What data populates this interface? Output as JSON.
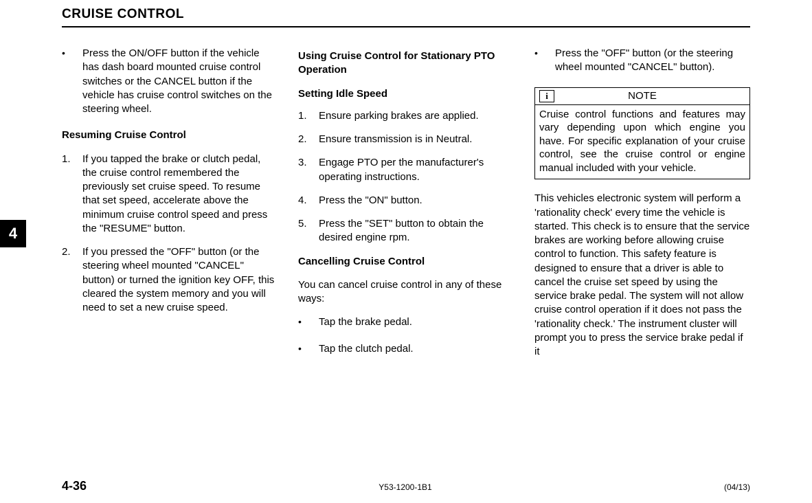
{
  "header": {
    "title": "CRUISE CONTROL"
  },
  "chapter_tab": "4",
  "column1": {
    "bullet1": "Press the ON/OFF button if the vehicle has dash board mounted cruise control switches or the CANCEL button if the vehicle has cruise control switches on the steering wheel.",
    "heading1": "Resuming Cruise Control",
    "item1_num": "1.",
    "item1_text": "If you tapped the brake or clutch pedal, the cruise control remembered the previously set cruise speed.  To resume that set speed, accelerate above the minimum cruise control speed and press the \"RESUME\" button.",
    "item2_num": "2.",
    "item2_text": "If you pressed the \"OFF\" button (or the steering wheel mounted \"CANCEL\" button) or turned the ignition key OFF, this cleared the system memory and you will need to set a new cruise speed."
  },
  "column2": {
    "heading1": "Using Cruise Control for Stationary PTO Operation",
    "subheading1": "Setting Idle Speed",
    "item1_num": "1.",
    "item1_text": "Ensure parking brakes are applied.",
    "item2_num": "2.",
    "item2_text": "Ensure transmission is in Neutral.",
    "item3_num": "3.",
    "item3_text": "Engage PTO per the manufacturer's operating instructions.",
    "item4_num": "4.",
    "item4_text": "Press the \"ON\" button.",
    "item5_num": "5.",
    "item5_text": "Press the \"SET\" button to obtain the desired engine rpm.",
    "heading2": "Cancelling Cruise Control",
    "intro2": "You can cancel cruise control in any of these ways:",
    "bullet1": "Tap the brake pedal.",
    "bullet2": "Tap the clutch pedal."
  },
  "column3": {
    "bullet1": "Press the \"OFF\" button (or the steering wheel mounted \"CANCEL\" button).",
    "note_icon": "i",
    "note_label": "NOTE",
    "note_body": "Cruise control functions and features may vary depending upon which engine you have.  For specific explanation of your cruise control, see the cruise control or engine manual included with your vehicle.",
    "para1": "This vehicles electronic system will perform a 'rationality check' every time the vehicle is started.  This check is to ensure that the service brakes are working before allowing cruise control to function.  This safety feature is designed to ensure that a driver is able to cancel the cruise set speed by using the service brake pedal.  The system will not allow cruise control operation if it does not pass the 'rationality check.'  The instrument cluster will prompt you to press the service brake pedal if it"
  },
  "footer": {
    "left": "4-36",
    "center": "Y53-1200-1B1",
    "right": "(04/13)"
  }
}
